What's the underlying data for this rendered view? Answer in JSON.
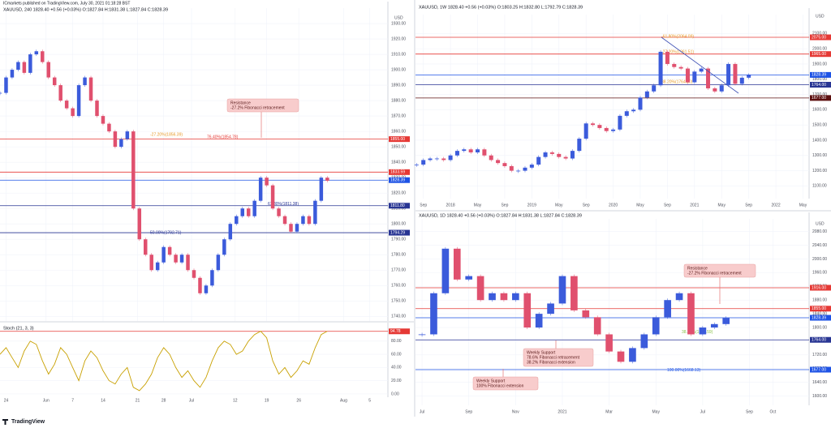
{
  "header": {
    "publisher": "ICmarkets published on TradingView.com, July 30, 2021 01:18:28 BST",
    "brand": "TradingView"
  },
  "chart_data": [
    {
      "type": "candlestick",
      "title": "XAUUSD, 240  1828.40 +0.56 (+0.03%) O:1827.84 H:1831.38 L:1827.84 C:1828.39",
      "currency": "USD",
      "colors": {
        "up": "#3b5bdb",
        "down": "#e0506e"
      },
      "grid": true,
      "xlim": [
        0,
        64
      ],
      "ylim": [
        1737,
        1940
      ],
      "xticks": [
        {
          "value": 1,
          "label": "24"
        },
        {
          "value": 7.6,
          "label": "Jun"
        },
        {
          "value": 12,
          "label": "7"
        },
        {
          "value": 17,
          "label": "14"
        },
        {
          "value": 22.7,
          "label": "21"
        },
        {
          "value": 27,
          "label": "28"
        },
        {
          "value": 31.6,
          "label": "Jul"
        },
        {
          "value": 38.8,
          "label": "12"
        },
        {
          "value": 44,
          "label": "19"
        },
        {
          "value": 49.3,
          "label": "26"
        },
        {
          "value": 56.7,
          "label": "Aug"
        },
        {
          "value": 61,
          "label": "5"
        }
      ],
      "yticks": [
        {
          "value": 1740,
          "label": "1740.00"
        },
        {
          "value": 1750,
          "label": "1750.00"
        },
        {
          "value": 1760,
          "label": "1760.00"
        },
        {
          "value": 1770,
          "label": "1770.00"
        },
        {
          "value": 1780,
          "label": "1780.00"
        },
        {
          "value": 1790,
          "label": "1790.00"
        },
        {
          "value": 1800,
          "label": "1800.00"
        },
        {
          "value": 1810,
          "label": "1810.00"
        },
        {
          "value": 1820,
          "label": "1820.00"
        },
        {
          "value": 1830,
          "label": "1830.00"
        },
        {
          "value": 1840,
          "label": "1840.00"
        },
        {
          "value": 1850,
          "label": "1850.00"
        },
        {
          "value": 1860,
          "label": "1860.00"
        },
        {
          "value": 1870,
          "label": "1870.00"
        },
        {
          "value": 1880,
          "label": "1880.00"
        },
        {
          "value": 1890,
          "label": "1890.00"
        },
        {
          "value": 1900,
          "label": "1900.00"
        },
        {
          "value": 1910,
          "label": "1910.00"
        },
        {
          "value": 1920,
          "label": "1920.00"
        },
        {
          "value": 1930,
          "label": "1930.00"
        }
      ],
      "x": [
        0,
        1,
        2,
        3,
        4,
        5,
        6,
        7,
        8,
        9,
        10,
        11,
        12,
        13,
        14,
        15,
        16,
        17,
        18,
        19,
        20,
        21,
        22,
        23,
        24,
        25,
        26,
        27,
        28,
        29,
        30,
        31,
        32,
        33,
        34,
        35,
        36,
        37,
        38,
        39,
        40,
        41,
        42,
        43,
        44,
        45,
        46,
        47,
        48,
        49,
        50,
        51,
        52,
        53,
        54
      ],
      "values": [
        1885,
        1895,
        1900,
        1905,
        1898,
        1910,
        1912,
        1905,
        1895,
        1890,
        1880,
        1875,
        1870,
        1890,
        1895,
        1880,
        1870,
        1865,
        1860,
        1850,
        1855,
        1860,
        1810,
        1790,
        1780,
        1770,
        1775,
        1785,
        1780,
        1775,
        1780,
        1770,
        1765,
        1755,
        1760,
        1770,
        1780,
        1790,
        1800,
        1805,
        1810,
        1805,
        1815,
        1830,
        1825,
        1810,
        1805,
        1800,
        1795,
        1800,
        1805,
        1800,
        1815,
        1830,
        1828
      ],
      "levels": [
        {
          "value": 1855,
          "label": "1855.00",
          "color": "#e53935"
        },
        {
          "value": 1833.59,
          "label": "1833.59",
          "color": "#e53935"
        },
        {
          "value": 1828.39,
          "label": "1828.39",
          "color": "#1e53e5"
        },
        {
          "value": 1811.8,
          "label": "1811.80",
          "color": "#283593"
        },
        {
          "value": 1794.29,
          "label": "1794.29",
          "color": "#283593"
        }
      ],
      "fibs": [
        {
          "value": 1856.39,
          "text": "-27.20%(1856.39)",
          "color": "#e69a28"
        },
        {
          "value": 1854.78,
          "text": "76.40%(1854.78)",
          "color": "#e53935"
        },
        {
          "value": 1811.38,
          "text": "61.80%(1811.38)",
          "color": "#283593"
        },
        {
          "value": 1792.71,
          "text": "50.00%(1792.71)",
          "color": "#283593"
        }
      ],
      "annotations": [
        {
          "lines": [
            "Resistance",
            "-27.2% Fibonacci retracement"
          ]
        }
      ],
      "indicator": {
        "name": "Stoch (21, 3, 3)",
        "color": "#c8a000",
        "ylim": [
          -5,
          108
        ],
        "yticks": [
          {
            "value": 0,
            "label": "0.00"
          },
          {
            "value": 20,
            "label": "20.00"
          },
          {
            "value": 40,
            "label": "40.00"
          },
          {
            "value": 60,
            "label": "60.00"
          },
          {
            "value": 80,
            "label": "80.00"
          }
        ],
        "values": [
          60,
          70,
          55,
          40,
          65,
          80,
          75,
          50,
          30,
          45,
          70,
          60,
          40,
          20,
          50,
          65,
          55,
          35,
          20,
          15,
          30,
          40,
          10,
          5,
          15,
          30,
          55,
          70,
          60,
          40,
          25,
          35,
          20,
          10,
          25,
          50,
          70,
          80,
          75,
          60,
          65,
          80,
          90,
          95,
          85,
          50,
          30,
          40,
          25,
          35,
          50,
          45,
          70,
          90,
          95
        ],
        "levels": [
          {
            "value": 94.78,
            "label": "94.78",
            "color": "#e53935"
          }
        ]
      }
    },
    {
      "type": "candlestick",
      "title": "XAUUSD, 1W  1828.40 +0.56 (+0.03%) O:1803.25 H:1832.80 L:1792.79 C:1828.39",
      "currency": "USD",
      "colors": {
        "up": "#3b5bdb",
        "down": "#e0506e"
      },
      "grid": true,
      "xlim": [
        0.84,
        58.9
      ],
      "ylim": [
        1017,
        2224
      ],
      "xticks": [
        {
          "value": 2,
          "label": "Sep"
        },
        {
          "value": 6,
          "label": "2018"
        },
        {
          "value": 10,
          "label": "May"
        },
        {
          "value": 14,
          "label": "Sep"
        },
        {
          "value": 18,
          "label": "2019"
        },
        {
          "value": 22,
          "label": "May"
        },
        {
          "value": 26,
          "label": "Sep"
        },
        {
          "value": 30,
          "label": "2020"
        },
        {
          "value": 34,
          "label": "May"
        },
        {
          "value": 38,
          "label": "Sep"
        },
        {
          "value": 42,
          "label": "2021"
        },
        {
          "value": 46,
          "label": "May"
        },
        {
          "value": 50,
          "label": "Sep"
        },
        {
          "value": 54,
          "label": "2022"
        },
        {
          "value": 58,
          "label": "May"
        }
      ],
      "yticks": [
        {
          "value": 1100,
          "label": "1100.00"
        },
        {
          "value": 1200,
          "label": "1200.00"
        },
        {
          "value": 1300,
          "label": "1300.00"
        },
        {
          "value": 1400,
          "label": "1400.00"
        },
        {
          "value": 1500,
          "label": "1500.00"
        },
        {
          "value": 1600,
          "label": "1600.00"
        },
        {
          "value": 1700,
          "label": "1700.00"
        },
        {
          "value": 1800,
          "label": "1800.00"
        },
        {
          "value": 1900,
          "label": "1900.00"
        },
        {
          "value": 2000,
          "label": "2000.00"
        },
        {
          "value": 2100,
          "label": "2100.00"
        }
      ],
      "x": [
        1,
        2,
        3,
        4,
        5,
        6,
        7,
        8,
        9,
        10,
        11,
        12,
        13,
        14,
        15,
        16,
        17,
        18,
        19,
        20,
        21,
        22,
        23,
        24,
        25,
        26,
        27,
        28,
        29,
        30,
        31,
        32,
        33,
        34,
        35,
        36,
        37,
        38,
        39,
        40,
        41,
        42,
        43,
        44,
        45,
        46,
        47,
        48,
        49,
        50
      ],
      "values": [
        1240,
        1270,
        1280,
        1280,
        1270,
        1300,
        1330,
        1340,
        1320,
        1340,
        1300,
        1270,
        1250,
        1230,
        1200,
        1200,
        1220,
        1240,
        1290,
        1320,
        1310,
        1290,
        1280,
        1330,
        1410,
        1510,
        1500,
        1480,
        1460,
        1470,
        1560,
        1590,
        1600,
        1680,
        1720,
        1760,
        1980,
        1900,
        1880,
        1870,
        1780,
        1850,
        1870,
        1740,
        1720,
        1760,
        1900,
        1770,
        1810,
        1828
      ],
      "levels": [
        {
          "value": 2075,
          "label": "2075.00",
          "color": "#e53935"
        },
        {
          "value": 1965,
          "label": "1965.00",
          "color": "#e53935"
        },
        {
          "value": 1828.39,
          "label": "1828.39",
          "color": "#1e53e5"
        },
        {
          "value": 1764,
          "label": "1764.00",
          "color": "#283593"
        },
        {
          "value": 1677,
          "label": "1677.00",
          "color": "#5d1010"
        }
      ],
      "fibs": [
        {
          "value": 2064.09,
          "text": "-61.80%(2064.09)",
          "color": "#e69a28"
        },
        {
          "value": 1961.51,
          "text": "-27.20%(1961.51)",
          "color": "#e69a28"
        },
        {
          "value": 1764.8,
          "text": "38.20%(1764.80)",
          "color": "#e69a28"
        }
      ],
      "annotations": []
    },
    {
      "type": "candlestick",
      "title": "XAUUSD, 1D  1828.40 +0.56 (+0.03%) O:1827.84 H:1831.38 L:1827.84 C:1828.39",
      "currency": "USD",
      "colors": {
        "up": "#3b5bdb",
        "down": "#e0506e"
      },
      "grid": true,
      "xlim": [
        -0.28,
        16.55
      ],
      "ylim": [
        1573,
        2117
      ],
      "xticks": [
        {
          "value": 0,
          "label": "Jul"
        },
        {
          "value": 2,
          "label": "Sep"
        },
        {
          "value": 4,
          "label": "Nov"
        },
        {
          "value": 6,
          "label": "2021"
        },
        {
          "value": 8,
          "label": "Mar"
        },
        {
          "value": 10,
          "label": "May"
        },
        {
          "value": 12,
          "label": "Jul"
        },
        {
          "value": 14,
          "label": "Sep"
        },
        {
          "value": 15,
          "label": "Oct"
        }
      ],
      "yticks": [
        {
          "value": 1600,
          "label": "1600.00"
        },
        {
          "value": 1640,
          "label": "1640.00"
        },
        {
          "value": 1680,
          "label": "1680.00"
        },
        {
          "value": 1720,
          "label": "1720.00"
        },
        {
          "value": 1760,
          "label": "1760.00"
        },
        {
          "value": 1800,
          "label": "1800.00"
        },
        {
          "value": 1840,
          "label": "1840.00"
        },
        {
          "value": 1880,
          "label": "1880.00"
        },
        {
          "value": 1920,
          "label": "1920.00"
        },
        {
          "value": 1960,
          "label": "1960.00"
        },
        {
          "value": 2000,
          "label": "2000.00"
        },
        {
          "value": 2040,
          "label": "2040.00"
        },
        {
          "value": 2080,
          "label": "2080.00"
        }
      ],
      "x": [
        0,
        0.5,
        1,
        1.5,
        2,
        2.5,
        3,
        3.5,
        4,
        4.5,
        5,
        5.5,
        6,
        6.5,
        7,
        7.5,
        8,
        8.5,
        9,
        9.5,
        10,
        10.5,
        11,
        11.5,
        12,
        12.5,
        13
      ],
      "values": [
        1780,
        1900,
        2030,
        1940,
        1950,
        1880,
        1900,
        1880,
        1900,
        1800,
        1840,
        1870,
        1950,
        1850,
        1830,
        1780,
        1730,
        1700,
        1740,
        1780,
        1830,
        1880,
        1900,
        1780,
        1800,
        1810,
        1828
      ],
      "levels": [
        {
          "value": 1916,
          "label": "1916.00",
          "color": "#e53935"
        },
        {
          "value": 1855,
          "label": "1855.00",
          "color": "#e53935"
        },
        {
          "value": 1828.39,
          "label": "1828.39",
          "color": "#1e53e5"
        },
        {
          "value": 1764,
          "label": "1764.00",
          "color": "#283593"
        },
        {
          "value": 1677,
          "label": "1677.00",
          "color": "#1e53e5"
        }
      ],
      "fibs": [
        {
          "value": 1779.59,
          "text": "38.20%(1779.59)",
          "color": "#8bc34a"
        },
        {
          "value": 1668.13,
          "text": "100.00%(1668.13)",
          "color": "#1e53e5"
        }
      ],
      "annotations": [
        {
          "lines": [
            "Resistance",
            "-27.2% Fibonacci retracement"
          ]
        },
        {
          "lines": [
            "Weekly Support",
            "78.6% Fibonacci retracement",
            "38.2% Fibonacci extension"
          ]
        },
        {
          "lines": [
            "Weekly Support",
            "100% Fibonacci extension"
          ]
        }
      ]
    }
  ]
}
